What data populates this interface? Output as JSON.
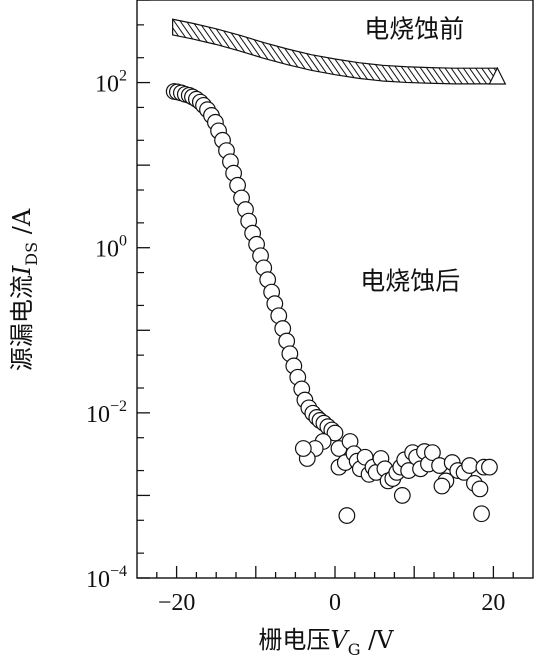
{
  "chart_data": {
    "type": "scatter",
    "xlabel": {
      "prefix": "栅电压",
      "var": "V",
      "sub": "G",
      "suffix": " /V"
    },
    "ylabel": {
      "prefix": "源漏电流",
      "var": "I",
      "sub": "DS",
      "suffix": " /A"
    },
    "x_range": [
      -25,
      25
    ],
    "y_scale": "log",
    "y_range_exponent": [
      -4,
      3
    ],
    "x_ticks": [
      {
        "value": -20,
        "label": "−20"
      },
      {
        "value": 0,
        "label": "0"
      },
      {
        "value": 20,
        "label": "20"
      }
    ],
    "y_ticks": [
      {
        "exp": 2,
        "base": "10",
        "sup": "2"
      },
      {
        "exp": 0,
        "base": "10",
        "sup": "0"
      },
      {
        "exp": -2,
        "base": "10",
        "sup": "−2"
      },
      {
        "exp": -4,
        "base": "10",
        "sup": "−4"
      }
    ],
    "annotations": [
      {
        "text": "电烧蚀前",
        "x": 10,
        "y": 450
      },
      {
        "text": "电烧蚀后",
        "x": 9.5,
        "y": 0.4
      }
    ],
    "series": [
      {
        "marker": "hatched-band",
        "x": [
          -20.5,
          -18,
          -15,
          -12,
          -9,
          -6,
          -3,
          0,
          3,
          6,
          9,
          12,
          15,
          18,
          20.5
        ],
        "y": [
          470,
          420,
          360,
          300,
          245,
          205,
          175,
          155,
          140,
          130,
          125,
          122,
          120,
          120,
          120
        ],
        "band_height_decades": 0.19
      },
      {
        "marker": "open-circle",
        "points": [
          [
            -20.3,
            78
          ],
          [
            -19.9,
            77
          ],
          [
            -19.4,
            75
          ],
          [
            -18.9,
            72
          ],
          [
            -18.4,
            70
          ],
          [
            -18.0,
            67
          ],
          [
            -17.5,
            63
          ],
          [
            -17.0,
            58
          ],
          [
            -16.6,
            53
          ],
          [
            -16.1,
            47
          ],
          [
            -15.6,
            40
          ],
          [
            -15.1,
            33
          ],
          [
            -14.7,
            26
          ],
          [
            -14.2,
            20
          ],
          [
            -13.7,
            15
          ],
          [
            -13.2,
            11
          ],
          [
            -12.8,
            8
          ],
          [
            -12.3,
            5.7
          ],
          [
            -11.8,
            4.0
          ],
          [
            -11.3,
            2.9
          ],
          [
            -10.9,
            2.1
          ],
          [
            -10.4,
            1.5
          ],
          [
            -9.9,
            1.1
          ],
          [
            -9.4,
            0.8
          ],
          [
            -9.0,
            0.57
          ],
          [
            -8.5,
            0.41
          ],
          [
            -8.0,
            0.29
          ],
          [
            -7.6,
            0.21
          ],
          [
            -7.1,
            0.15
          ],
          [
            -6.6,
            0.105
          ],
          [
            -6.1,
            0.074
          ],
          [
            -5.7,
            0.052
          ],
          [
            -5.2,
            0.037
          ],
          [
            -4.7,
            0.027
          ],
          [
            -4.2,
            0.0195
          ],
          [
            -3.8,
            0.0143
          ],
          [
            -3.3,
            0.0115
          ],
          [
            -2.8,
            0.0099
          ],
          [
            -2.3,
            0.0088
          ],
          [
            -1.9,
            0.0081
          ],
          [
            -1.4,
            0.0075
          ],
          [
            -0.9,
            0.0068
          ],
          [
            -0.4,
            0.0062
          ],
          [
            0.0,
            0.0057
          ],
          [
            0.5,
            0.0037
          ],
          [
            -1.5,
            0.0045
          ],
          [
            -2.5,
            0.0037
          ],
          [
            -3.5,
            0.0028
          ],
          [
            -4.0,
            0.0037
          ],
          [
            0.5,
            0.0022
          ],
          [
            1.3,
            0.0025
          ],
          [
            1.9,
            0.0045
          ],
          [
            2.4,
            0.0032
          ],
          [
            2.8,
            0.0026
          ],
          [
            3.2,
            0.0021
          ],
          [
            3.8,
            0.0029
          ],
          [
            4.3,
            0.0018
          ],
          [
            4.8,
            0.0022
          ],
          [
            5.2,
            0.0019
          ],
          [
            5.8,
            0.0028
          ],
          [
            6.3,
            0.0021
          ],
          [
            6.7,
            0.0015
          ],
          [
            7.3,
            0.0016
          ],
          [
            7.8,
            0.0019
          ],
          [
            8.3,
            0.0022
          ],
          [
            8.8,
            0.0027
          ],
          [
            9.3,
            0.002
          ],
          [
            9.8,
            0.0033
          ],
          [
            10.3,
            0.0029
          ],
          [
            10.8,
            0.0021
          ],
          [
            11.3,
            0.0034
          ],
          [
            11.8,
            0.0024
          ],
          [
            12.3,
            0.0033
          ],
          [
            13.2,
            0.0023
          ],
          [
            14.0,
            0.0015
          ],
          [
            14.8,
            0.0025
          ],
          [
            15.5,
            0.002
          ],
          [
            16.3,
            0.0019
          ],
          [
            17.0,
            0.0023
          ],
          [
            17.6,
            0.0014
          ],
          [
            18.3,
            0.0012
          ],
          [
            18.8,
            0.0022
          ],
          [
            19.5,
            0.0022
          ],
          [
            8.5,
            0.001
          ],
          [
            13.5,
            0.0013
          ],
          [
            18.5,
            0.0006
          ],
          [
            1.5,
            0.00057
          ]
        ]
      }
    ]
  }
}
